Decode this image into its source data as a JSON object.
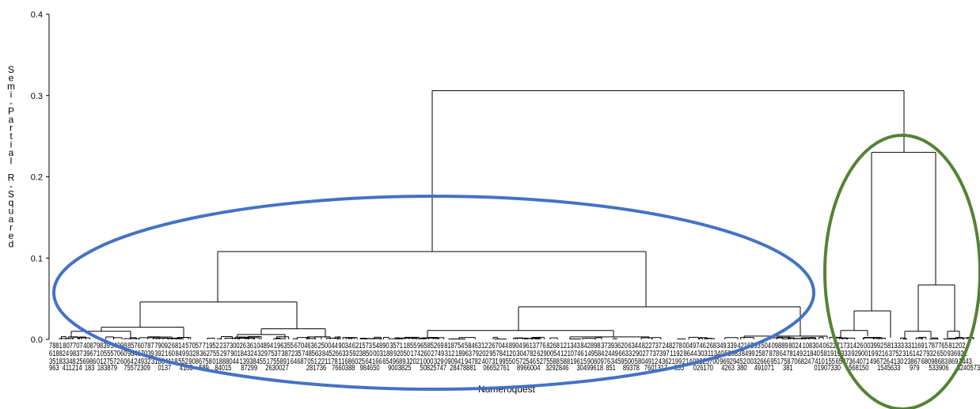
{
  "chart_data": {
    "type": "dendrogram",
    "title": "",
    "xlabel": "Numeroquest",
    "ylabel": "Semi-Partial R-Squared",
    "ylim": [
      0,
      0.4
    ],
    "yticks": [
      "0.0",
      "0.1",
      "0.2",
      "0.3",
      "0.4"
    ],
    "grid": false,
    "leaf_count_approx": 230,
    "merges": [
      {
        "name": "root",
        "height": 0.306
      },
      {
        "name": "left-main",
        "height": 0.108
      },
      {
        "name": "right-main",
        "height": 0.23
      },
      {
        "name": "left-a",
        "height": 0.046
      },
      {
        "name": "left-b",
        "height": 0.04
      },
      {
        "name": "right-b",
        "height": 0.067
      },
      {
        "name": "right-a",
        "height": 0.035
      },
      {
        "name": "left-a-1",
        "height": 0.015
      },
      {
        "name": "left-a-2",
        "height": 0.013
      },
      {
        "name": "left-b-1",
        "height": 0.011
      },
      {
        "name": "left-b-2",
        "height": 0.004
      }
    ],
    "annotations": [
      {
        "shape": "ellipse",
        "color": "#4472c4",
        "encloses": "left-main"
      },
      {
        "shape": "ellipse",
        "color": "#548235",
        "encloses": "right-main"
      }
    ]
  }
}
